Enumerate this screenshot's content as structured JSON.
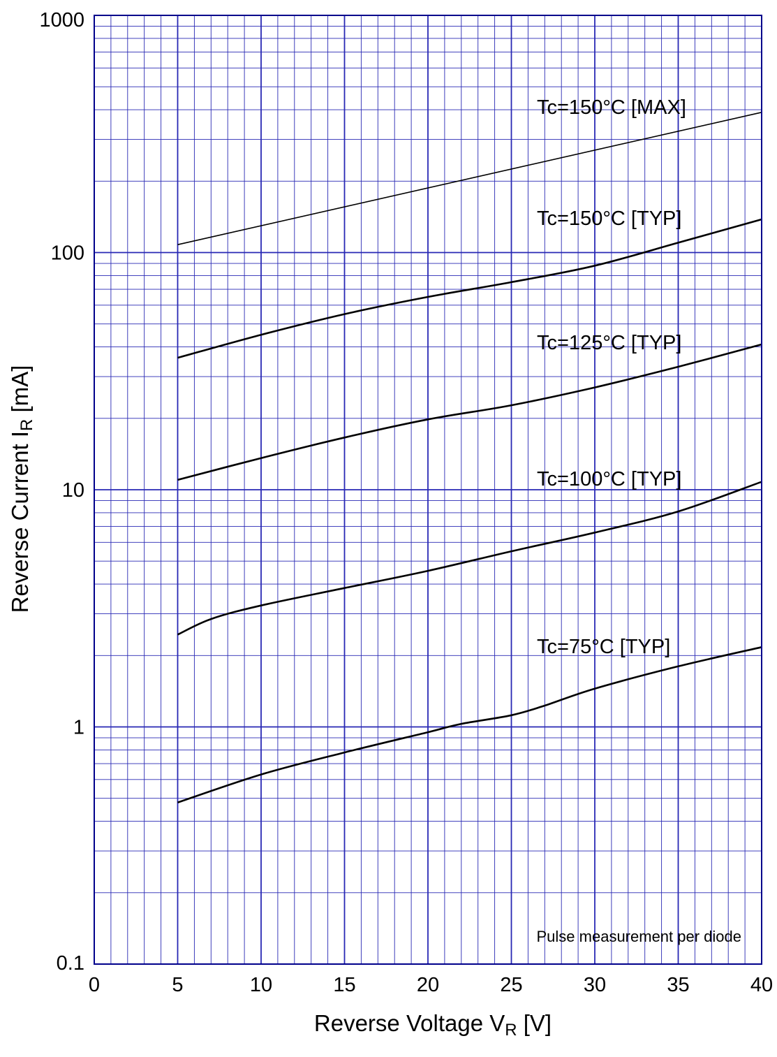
{
  "chart_data": {
    "type": "line",
    "xlabel": {
      "main": "Reverse Voltage  V",
      "sub": "R",
      "unit": "  [V]"
    },
    "ylabel": {
      "main": "Reverse Current  I",
      "sub": "R",
      "unit": "  [mA]"
    },
    "xlim": [
      0,
      40
    ],
    "ylim": [
      0.1,
      1000
    ],
    "y_scale": "log",
    "grid": true,
    "x_ticks": [
      0,
      5,
      10,
      15,
      20,
      25,
      30,
      35,
      40
    ],
    "x_tick_labels": [
      "0",
      "5",
      "10",
      "15",
      "20",
      "25",
      "30",
      "35",
      "40"
    ],
    "y_tick_labels": [
      "0.1",
      "1",
      "10",
      "100",
      "1000"
    ],
    "annotation": "Pulse measurement per diode",
    "series": [
      {
        "name": "Tc=150°C [MAX]",
        "x": [
          5,
          40
        ],
        "y": [
          108,
          390
        ]
      },
      {
        "name": "Tc=150°C [TYP]",
        "x": [
          5,
          10,
          15,
          20,
          25,
          30,
          35,
          40
        ],
        "y": [
          36,
          45,
          55,
          65,
          75,
          88,
          110,
          138
        ]
      },
      {
        "name": "Tc=125°C [TYP]",
        "x": [
          5,
          10,
          15,
          20,
          25,
          30,
          35,
          40
        ],
        "y": [
          11,
          13.6,
          16.6,
          19.8,
          22.7,
          27,
          33,
          41
        ]
      },
      {
        "name": "Tc=100°C [TYP]",
        "x": [
          5,
          7,
          10,
          15,
          20,
          25,
          30,
          35,
          40
        ],
        "y": [
          2.45,
          2.85,
          3.25,
          3.85,
          4.55,
          5.5,
          6.6,
          8.1,
          10.8
        ]
      },
      {
        "name": "Tc=75°C [TYP]",
        "x": [
          5,
          10,
          15,
          20,
          22,
          25,
          27,
          30,
          35,
          40
        ],
        "y": [
          0.48,
          0.63,
          0.78,
          0.95,
          1.03,
          1.12,
          1.23,
          1.45,
          1.8,
          2.17
        ]
      }
    ]
  }
}
